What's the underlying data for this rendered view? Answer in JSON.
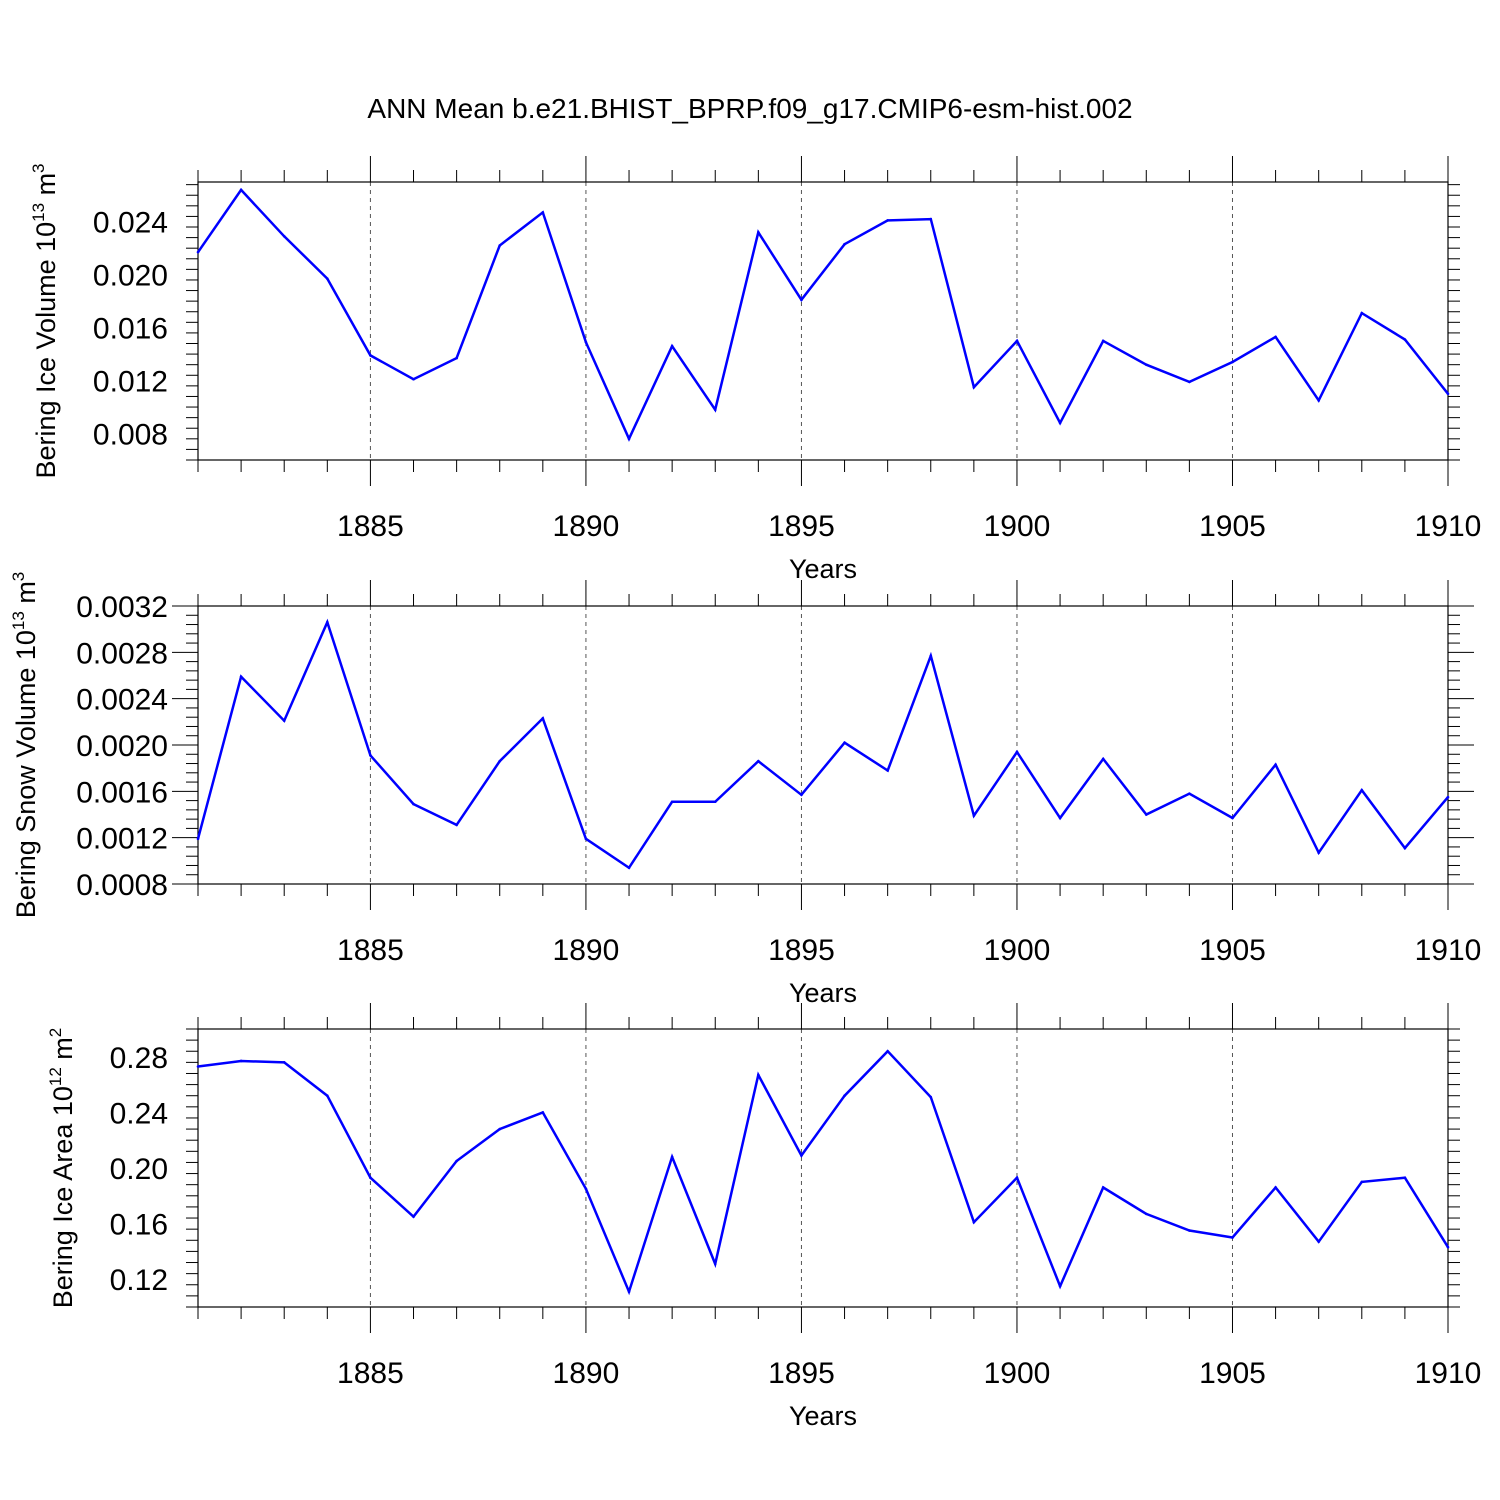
{
  "title": "ANN Mean b.e21.BHIST_BPRP.f09_g17.CMIP6-esm-hist.002",
  "line_color": "#0000ff",
  "chart_data": [
    {
      "type": "line",
      "series_name": "Bering Ice Volume",
      "ylabel_main": "Bering Ice Volume 10",
      "ylabel_exp": "13",
      "ylabel_unit": " m",
      "ylabel_unit_exp": "3",
      "xlabel": "Years",
      "xlim": [
        1881,
        1910
      ],
      "ylim": [
        0.006,
        0.027
      ],
      "x_ticks": [
        1885,
        1890,
        1895,
        1900,
        1905,
        1910
      ],
      "y_ticks": [
        0.008,
        0.012,
        0.016,
        0.02,
        0.024
      ],
      "y_tick_labels": [
        "0.008",
        "0.012",
        "0.016",
        "0.020",
        "0.024"
      ],
      "x": [
        1881,
        1882,
        1883,
        1884,
        1885,
        1886,
        1887,
        1888,
        1889,
        1890,
        1891,
        1892,
        1893,
        1894,
        1895,
        1896,
        1897,
        1898,
        1899,
        1900,
        1901,
        1902,
        1903,
        1904,
        1905,
        1906,
        1907,
        1908,
        1909,
        1910
      ],
      "values": [
        0.0217,
        0.0264,
        0.0229,
        0.0197,
        0.0139,
        0.0121,
        0.0137,
        0.0222,
        0.0247,
        0.0149,
        0.0076,
        0.0146,
        0.0098,
        0.0232,
        0.0181,
        0.0223,
        0.0241,
        0.0242,
        0.0115,
        0.015,
        0.0088,
        0.015,
        0.0132,
        0.0119,
        0.0134,
        0.0153,
        0.0105,
        0.0171,
        0.0151,
        0.011
      ]
    },
    {
      "type": "line",
      "series_name": "Bering Snow Volume",
      "ylabel_main": "Bering Snow Volume 10",
      "ylabel_exp": "13",
      "ylabel_unit": " m",
      "ylabel_unit_exp": "3",
      "xlabel": "Years",
      "xlim": [
        1881,
        1910
      ],
      "ylim": [
        0.0008,
        0.0032
      ],
      "x_ticks": [
        1885,
        1890,
        1895,
        1900,
        1905,
        1910
      ],
      "y_ticks": [
        0.0008,
        0.0012,
        0.0016,
        0.002,
        0.0024,
        0.0028,
        0.0032
      ],
      "y_tick_labels": [
        "0.0008",
        "0.0012",
        "0.0016",
        "0.0020",
        "0.0024",
        "0.0028",
        "0.0032"
      ],
      "x": [
        1881,
        1882,
        1883,
        1884,
        1885,
        1886,
        1887,
        1888,
        1889,
        1890,
        1891,
        1892,
        1893,
        1894,
        1895,
        1896,
        1897,
        1898,
        1899,
        1900,
        1901,
        1902,
        1903,
        1904,
        1905,
        1906,
        1907,
        1908,
        1909,
        1910
      ],
      "values": [
        0.00119,
        0.00259,
        0.00221,
        0.00306,
        0.00191,
        0.00149,
        0.00131,
        0.00186,
        0.00223,
        0.00119,
        0.00094,
        0.00151,
        0.00151,
        0.00186,
        0.00157,
        0.00202,
        0.00178,
        0.00277,
        0.00139,
        0.00194,
        0.00137,
        0.00188,
        0.0014,
        0.00158,
        0.00137,
        0.00183,
        0.00107,
        0.00161,
        0.00111,
        0.00155
      ]
    },
    {
      "type": "line",
      "series_name": "Bering Ice Area",
      "ylabel_main": "Bering Ice Area 10",
      "ylabel_exp": "12",
      "ylabel_unit": " m",
      "ylabel_unit_exp": "2",
      "xlabel": "Years",
      "xlim": [
        1881,
        1910
      ],
      "ylim": [
        0.1,
        0.3
      ],
      "x_ticks": [
        1885,
        1890,
        1895,
        1900,
        1905,
        1910
      ],
      "y_ticks": [
        0.12,
        0.16,
        0.2,
        0.24,
        0.28
      ],
      "y_tick_labels": [
        "0.12",
        "0.16",
        "0.20",
        "0.24",
        "0.28"
      ],
      "x": [
        1881,
        1882,
        1883,
        1884,
        1885,
        1886,
        1887,
        1888,
        1889,
        1890,
        1891,
        1892,
        1893,
        1894,
        1895,
        1896,
        1897,
        1898,
        1899,
        1900,
        1901,
        1902,
        1903,
        1904,
        1905,
        1906,
        1907,
        1908,
        1909,
        1910
      ],
      "values": [
        0.273,
        0.277,
        0.276,
        0.252,
        0.193,
        0.165,
        0.205,
        0.228,
        0.24,
        0.185,
        0.111,
        0.208,
        0.131,
        0.267,
        0.209,
        0.252,
        0.284,
        0.251,
        0.161,
        0.193,
        0.115,
        0.186,
        0.167,
        0.155,
        0.15,
        0.186,
        0.147,
        0.19,
        0.193,
        0.143
      ]
    }
  ]
}
